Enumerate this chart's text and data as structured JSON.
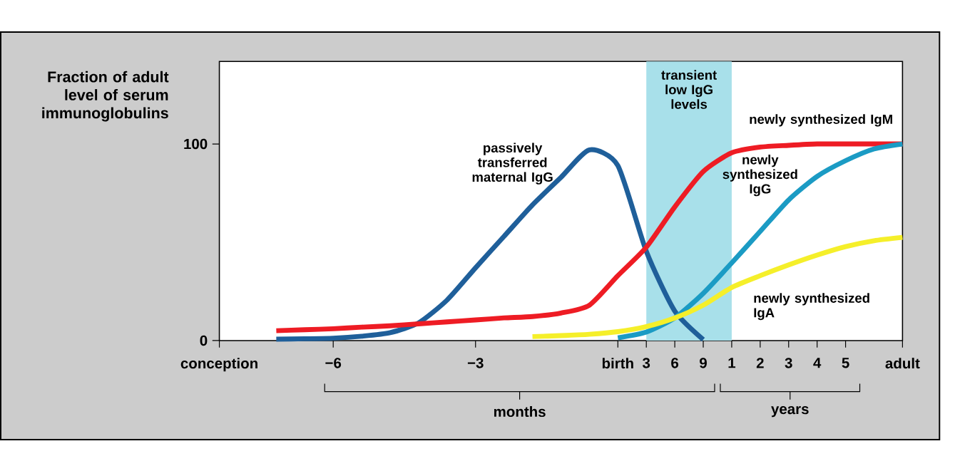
{
  "chart_data": {
    "type": "line",
    "ylabel": "Fraction of adult level of serum immunoglobulins",
    "categories": [
      "conception",
      null,
      null,
      null,
      "−6",
      null,
      null,
      null,
      null,
      "−3",
      null,
      null,
      null,
      null,
      "birth",
      "3",
      "6",
      "9",
      "1",
      "2",
      "3",
      "4",
      "5",
      null,
      "adult"
    ],
    "ylim": [
      0,
      142
    ],
    "yticks": [
      0,
      100
    ],
    "series": [
      {
        "name": "passively transferred maternal IgG",
        "color": "#1f5f9a",
        "values": [
          null,
          null,
          0.7,
          0.9,
          1.2,
          2.2,
          4,
          9,
          20.6,
          37,
          53,
          69,
          83,
          97,
          89,
          45.4,
          15,
          0.5,
          null,
          null,
          null,
          null,
          null,
          null,
          null
        ]
      },
      {
        "name": "newly synthesized IgM",
        "color": "#ee1c24",
        "values": [
          null,
          null,
          5.0,
          5.5,
          6,
          6.8,
          7.5,
          8.5,
          9.5,
          10.5,
          11.5,
          12.2,
          14,
          18,
          33,
          47.5,
          68,
          86,
          95.5,
          98.4,
          99.3,
          100,
          100,
          100,
          100
        ]
      },
      {
        "name": "newly synthesized IgG",
        "color": "#1b9bc4",
        "values": [
          null,
          null,
          null,
          null,
          null,
          null,
          null,
          null,
          null,
          null,
          null,
          null,
          null,
          null,
          1.4,
          4.3,
          11.5,
          24,
          39.5,
          55.5,
          71.5,
          83.5,
          91.5,
          97.5,
          100
        ]
      },
      {
        "name": "newly synthesized IgA",
        "color": "#f5ef2a",
        "values": [
          null,
          null,
          null,
          null,
          null,
          null,
          null,
          null,
          null,
          null,
          null,
          2.0,
          2.5,
          3.2,
          4.5,
          7.1,
          11.5,
          18,
          27,
          33,
          38.5,
          43.5,
          47.8,
          50.8,
          52.5
        ]
      }
    ],
    "bands": [
      {
        "axis": "x",
        "from": "3",
        "to": "1",
        "label": "transient low IgG levels",
        "color": "#a8e0ea"
      }
    ],
    "annotations": [
      "months",
      "years"
    ]
  }
}
